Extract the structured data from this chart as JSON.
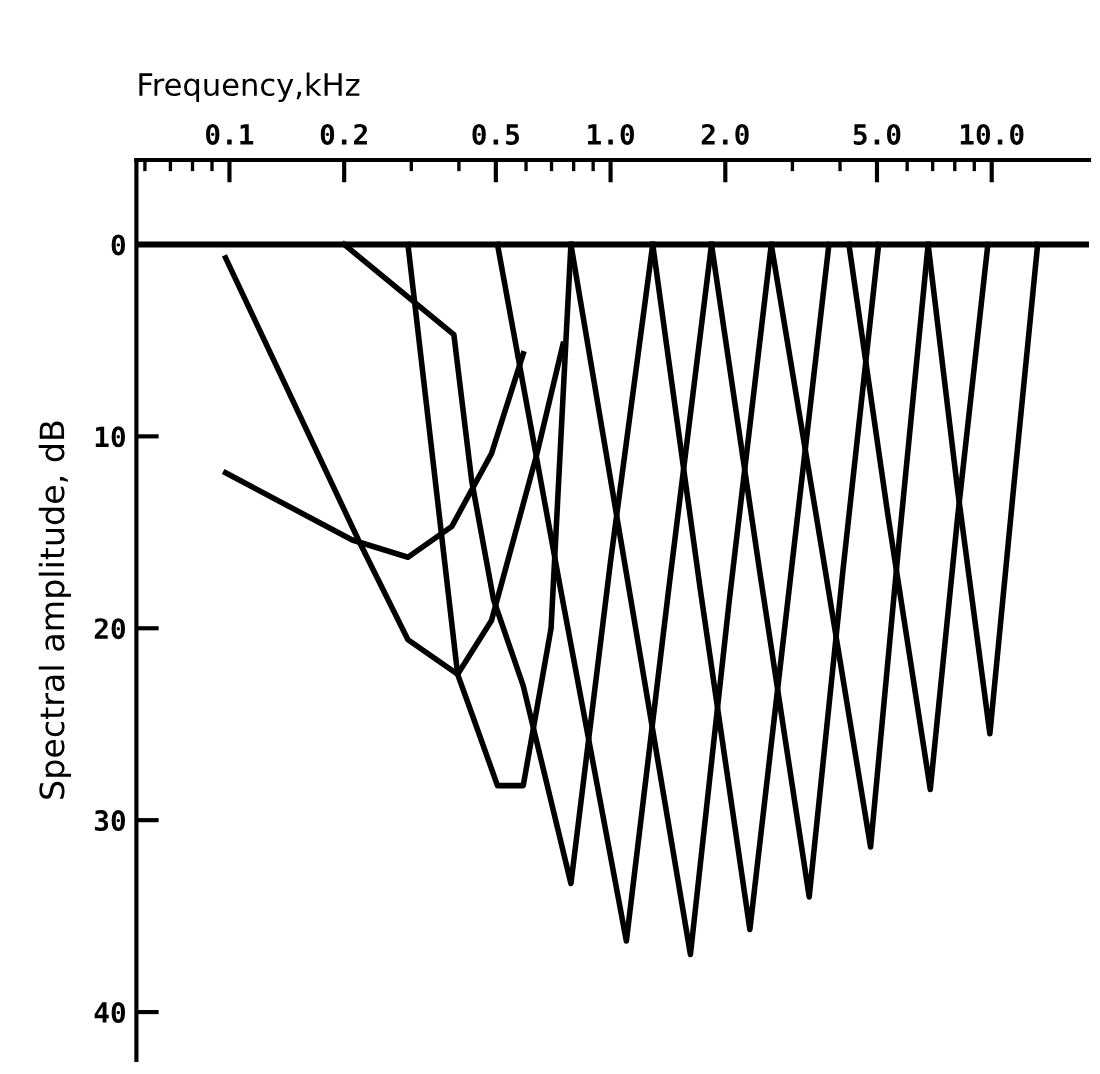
{
  "chart_data": {
    "type": "line",
    "xlabel": "Frequency,kHz",
    "ylabel": "Spectral amplitude, dB",
    "log": "x",
    "xlim": [
      0.057,
      18
    ],
    "ylim": [
      42.5,
      -4.4
    ],
    "xticks": [
      0.1,
      0.2,
      0.5,
      {
        "value": 1,
        "label": "1.0"
      },
      {
        "value": 2,
        "label": "2.0"
      },
      {
        "value": 5,
        "label": "5.0"
      },
      {
        "value": 10,
        "label": "10.0"
      }
    ],
    "yticks": [
      0,
      10,
      20,
      30,
      40
    ],
    "grid": false,
    "marker": "none",
    "line_style": "solid",
    "ref_lines": [
      {
        "axis": "y",
        "value": 0,
        "color": "#000000"
      }
    ],
    "series": [
      {
        "color": "#000000",
        "x": [
          0.0977,
          0.21,
          0.294,
          0.383,
          0.487,
          0.59
        ],
        "values": [
          11.9,
          15.4,
          16.3,
          14.7,
          10.9,
          5.7
        ]
      },
      {
        "color": "#000000",
        "x": [
          0.0977,
          0.218,
          0.294,
          0.397,
          0.487,
          0.641,
          0.75
        ],
        "values": [
          0.7,
          15.4,
          20.6,
          22.4,
          19.6,
          10.9,
          5.2
        ]
      },
      {
        "color": "#000000",
        "x": [
          0.2,
          0.301,
          0.388,
          0.432,
          0.493,
          0.59,
          0.787,
          1.0,
          1.29
        ],
        "values": [
          0,
          2.9,
          4.7,
          12.3,
          18.5,
          23,
          33.3,
          16.5,
          0
        ]
      },
      {
        "color": "#000000",
        "x": [
          0.294,
          0.397,
          0.437,
          0.505,
          0.59,
          0.698,
          0.75,
          0.787
        ],
        "values": [
          0,
          22.4,
          24.7,
          28.2,
          28.2,
          20,
          8,
          0
        ]
      },
      {
        "color": "#000000",
        "x": [
          0.505,
          0.74,
          1.1,
          1.42,
          1.84
        ],
        "values": [
          0,
          18,
          36.3,
          18,
          0
        ]
      },
      {
        "color": "#000000",
        "x": [
          0.787,
          1.13,
          1.62,
          2.05,
          2.64
        ],
        "values": [
          0,
          18.5,
          37,
          18.5,
          0
        ]
      },
      {
        "color": "#000000",
        "x": [
          1.29,
          1.72,
          2.32,
          2.94,
          3.74
        ],
        "values": [
          0,
          18,
          35.7,
          18,
          0
        ]
      },
      {
        "color": "#000000",
        "x": [
          1.84,
          2.46,
          3.32,
          4.07,
          5.05
        ],
        "values": [
          0,
          17,
          34,
          17,
          0
        ]
      },
      {
        "color": "#000000",
        "x": [
          2.64,
          3.57,
          4.81,
          5.7,
          6.81
        ],
        "values": [
          0,
          15.7,
          31.4,
          15.7,
          0
        ]
      },
      {
        "color": "#000000",
        "x": [
          4.22,
          5.35,
          6.9,
          8.14,
          9.77
        ],
        "values": [
          0,
          14.2,
          28.4,
          14.2,
          0
        ]
      },
      {
        "color": "#000000",
        "x": [
          6.81,
          8.14,
          9.89,
          11.4,
          13.2
        ],
        "values": [
          0,
          12.8,
          25.5,
          12.8,
          0
        ]
      }
    ]
  }
}
